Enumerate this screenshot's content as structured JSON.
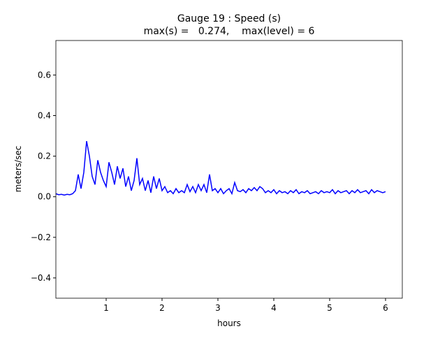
{
  "chart_data": {
    "type": "line",
    "title": "Gauge 19 : Speed (s)",
    "subtitle": "max(s) =   0.274,    max(level) = 6",
    "xlabel": "hours",
    "ylabel": "meters/sec",
    "xlim": [
      0.1,
      6.3
    ],
    "ylim": [
      -0.5,
      0.77
    ],
    "xticks": [
      1,
      2,
      3,
      4,
      5,
      6
    ],
    "yticks": [
      {
        "value": -0.4,
        "label": "−0.4"
      },
      {
        "value": -0.2,
        "label": "−0.2"
      },
      {
        "value": 0,
        "label": "0.0"
      },
      0.2,
      0.4,
      0.6
    ],
    "series": [
      {
        "name": "speed",
        "color": "#0000ff",
        "x": [
          0.1,
          0.15,
          0.2,
          0.25,
          0.3,
          0.35,
          0.4,
          0.45,
          0.5,
          0.55,
          0.6,
          0.65,
          0.7,
          0.75,
          0.8,
          0.85,
          0.9,
          0.95,
          1.0,
          1.05,
          1.1,
          1.15,
          1.2,
          1.25,
          1.3,
          1.35,
          1.4,
          1.45,
          1.5,
          1.55,
          1.6,
          1.65,
          1.7,
          1.75,
          1.8,
          1.85,
          1.9,
          1.95,
          2.0,
          2.05,
          2.1,
          2.15,
          2.2,
          2.25,
          2.3,
          2.35,
          2.4,
          2.45,
          2.5,
          2.55,
          2.6,
          2.65,
          2.7,
          2.75,
          2.8,
          2.85,
          2.9,
          2.95,
          3.0,
          3.05,
          3.1,
          3.15,
          3.2,
          3.25,
          3.3,
          3.35,
          3.4,
          3.45,
          3.5,
          3.55,
          3.6,
          3.65,
          3.7,
          3.75,
          3.8,
          3.85,
          3.9,
          3.95,
          4.0,
          4.05,
          4.1,
          4.15,
          4.2,
          4.25,
          4.3,
          4.35,
          4.4,
          4.45,
          4.5,
          4.55,
          4.6,
          4.65,
          4.7,
          4.75,
          4.8,
          4.85,
          4.9,
          4.95,
          5.0,
          5.05,
          5.1,
          5.15,
          5.2,
          5.25,
          5.3,
          5.35,
          5.4,
          5.45,
          5.5,
          5.55,
          5.6,
          5.65,
          5.7,
          5.75,
          5.8,
          5.85,
          5.9,
          5.95,
          6.0
        ],
        "values": [
          0.015,
          0.01,
          0.012,
          0.008,
          0.012,
          0.01,
          0.015,
          0.03,
          0.11,
          0.04,
          0.12,
          0.274,
          0.2,
          0.1,
          0.06,
          0.18,
          0.12,
          0.08,
          0.05,
          0.17,
          0.12,
          0.06,
          0.15,
          0.09,
          0.14,
          0.05,
          0.1,
          0.03,
          0.08,
          0.19,
          0.06,
          0.09,
          0.03,
          0.08,
          0.02,
          0.1,
          0.04,
          0.09,
          0.03,
          0.05,
          0.02,
          0.03,
          0.015,
          0.04,
          0.02,
          0.03,
          0.02,
          0.06,
          0.025,
          0.05,
          0.02,
          0.06,
          0.03,
          0.06,
          0.02,
          0.11,
          0.03,
          0.04,
          0.02,
          0.04,
          0.015,
          0.03,
          0.04,
          0.015,
          0.07,
          0.03,
          0.025,
          0.035,
          0.02,
          0.04,
          0.03,
          0.045,
          0.03,
          0.05,
          0.04,
          0.02,
          0.03,
          0.02,
          0.035,
          0.015,
          0.03,
          0.02,
          0.025,
          0.015,
          0.03,
          0.02,
          0.035,
          0.015,
          0.025,
          0.02,
          0.03,
          0.015,
          0.02,
          0.025,
          0.015,
          0.03,
          0.02,
          0.025,
          0.02,
          0.035,
          0.015,
          0.03,
          0.02,
          0.025,
          0.03,
          0.015,
          0.03,
          0.02,
          0.035,
          0.02,
          0.025,
          0.03,
          0.015,
          0.035,
          0.02,
          0.03,
          0.025,
          0.02,
          0.025
        ]
      }
    ]
  }
}
